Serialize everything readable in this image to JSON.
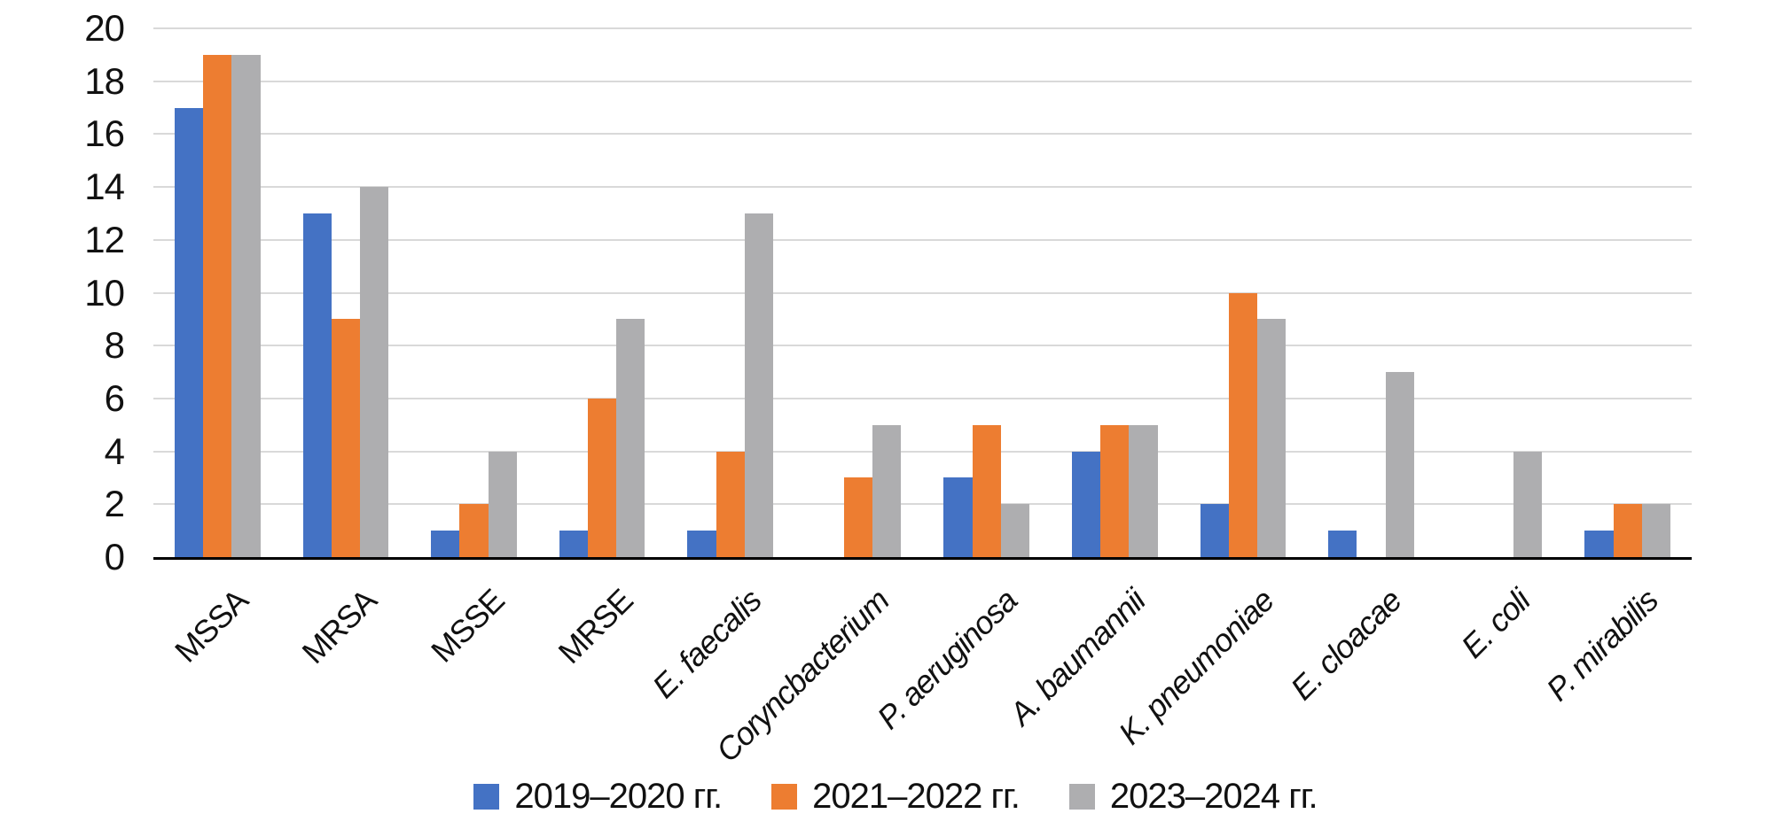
{
  "chart_data": {
    "type": "bar",
    "title": "",
    "xlabel": "",
    "ylabel": "",
    "categories": [
      "MSSA",
      "MRSA",
      "MSSE",
      "MRSE",
      "E. faecalis",
      "Coryncbacterium",
      "P. aeruginosa",
      "A. baumannii",
      "K. pneumoniae",
      "E. cloacae",
      "E. coli",
      "P. mirabilis"
    ],
    "series": [
      {
        "name": "2019–2020 гг.",
        "color": "#4472C4",
        "values": [
          17,
          13,
          1,
          1,
          1,
          0,
          3,
          4,
          2,
          1,
          0,
          1
        ]
      },
      {
        "name": "2021–2022 гг.",
        "color": "#ED7D31",
        "values": [
          19,
          9,
          2,
          6,
          4,
          3,
          5,
          5,
          10,
          0,
          0,
          2
        ]
      },
      {
        "name": "2023–2024 гг.",
        "color": "#AEAEB0",
        "values": [
          19,
          14,
          4,
          9,
          13,
          5,
          2,
          5,
          9,
          7,
          4,
          2
        ]
      }
    ],
    "y_axis": {
      "min": 0,
      "max": 20,
      "step": 2,
      "tick_labels": [
        "0",
        "2",
        "4",
        "6",
        "8",
        "10",
        "12",
        "14",
        "16",
        "18",
        "20"
      ]
    },
    "grid": "horizontal",
    "legend_position": "bottom"
  },
  "colors": {
    "gridline": "#D9D9D9",
    "axis_line": "#000000",
    "text": "#111111",
    "background": "#FFFFFF"
  }
}
